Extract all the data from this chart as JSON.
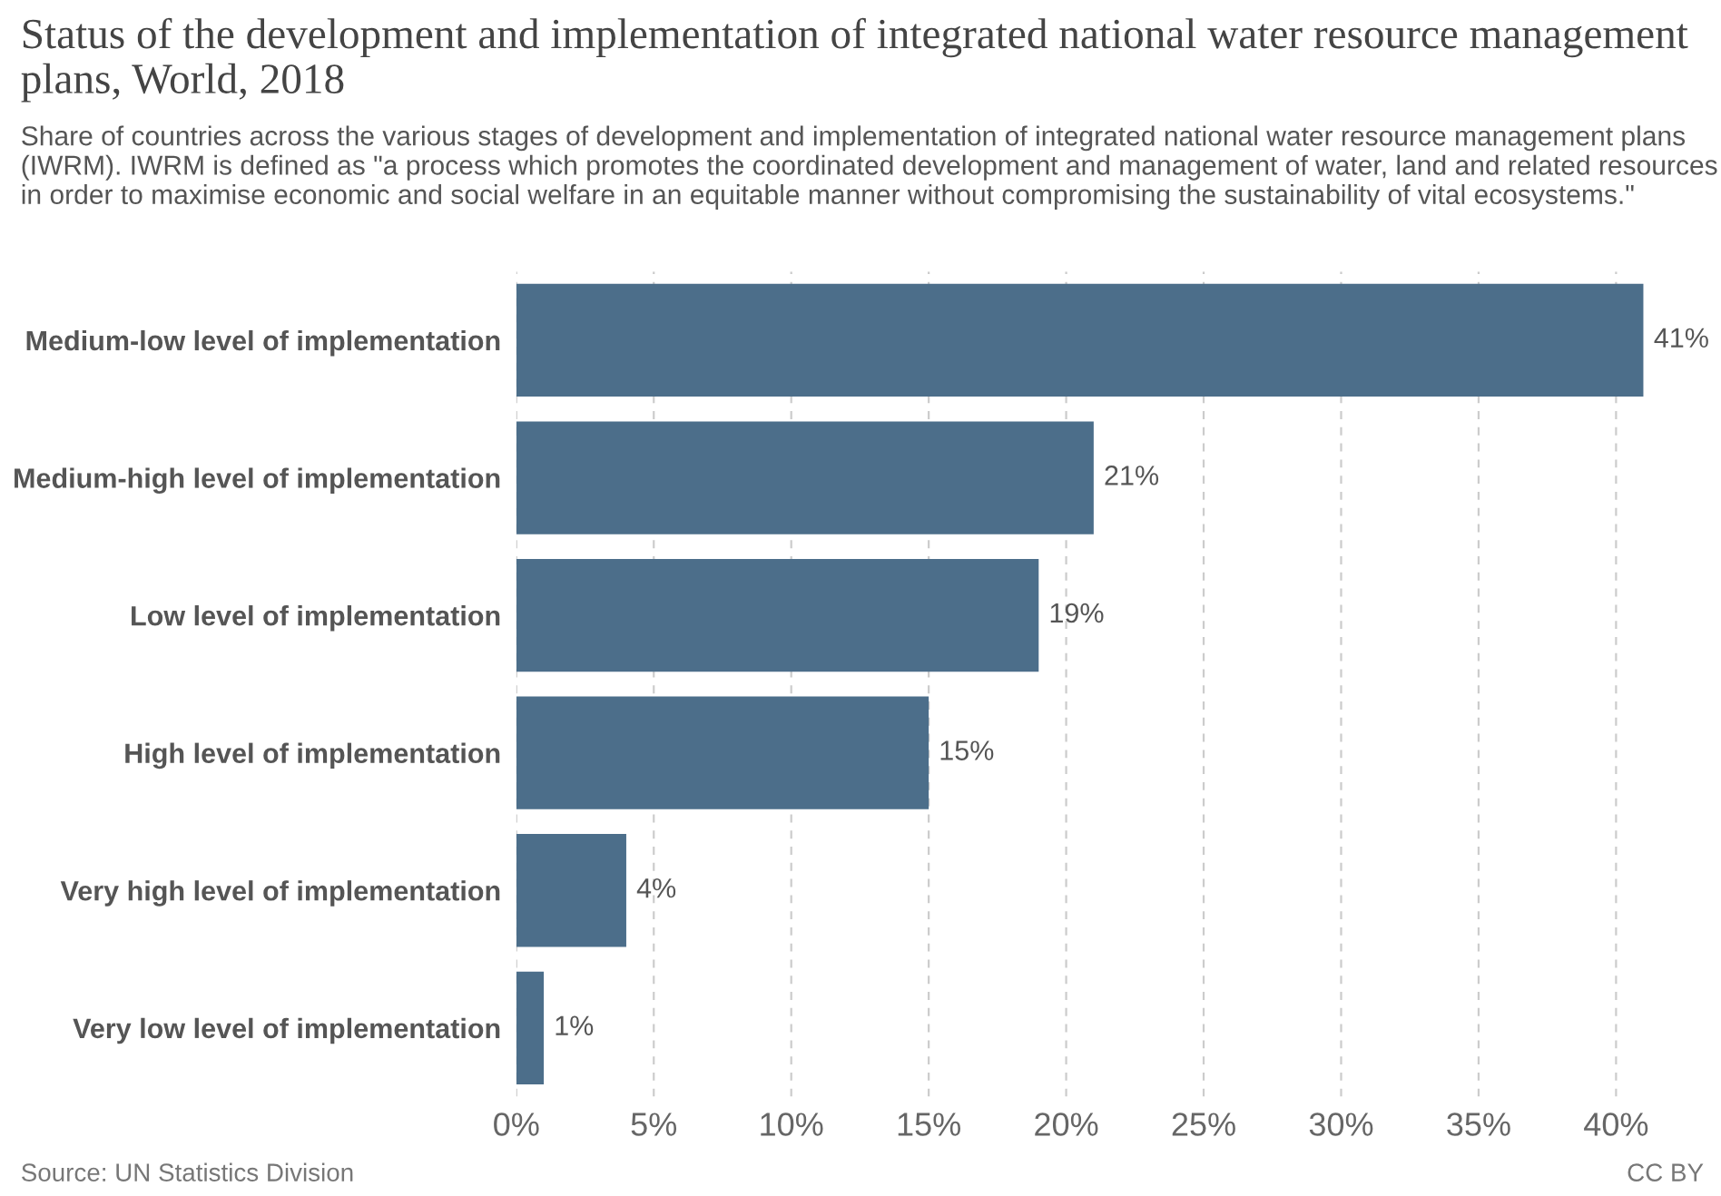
{
  "chart_data": {
    "type": "bar",
    "orientation": "horizontal",
    "title": "Status of the development and implementation of integrated national water resource management plans, World, 2018",
    "subtitle": "Share of countries across the various stages of development and implementation of integrated national water resource management plans (IWRM). IWRM is defined as \"a process which promotes the coordinated development and management of water, land and related resources in order to maximise economic and social welfare in an equitable manner without compromising the sustainability of vital ecosystems.\"",
    "categories": [
      "Medium-low level of implementation",
      "Medium-high level of implementation",
      "Low level of implementation",
      "High level of implementation",
      "Very high level of implementation",
      "Very low level of implementation"
    ],
    "values": [
      41,
      21,
      19,
      15,
      4,
      1
    ],
    "value_labels": [
      "41%",
      "21%",
      "19%",
      "15%",
      "4%",
      "1%"
    ],
    "color": "#4c6e8a",
    "xlim": [
      0,
      41
    ],
    "xticks": [
      {
        "value": 0,
        "label": "0%"
      },
      {
        "value": 5,
        "label": "5%"
      },
      {
        "value": 10,
        "label": "10%"
      },
      {
        "value": 15,
        "label": "15%"
      },
      {
        "value": 20,
        "label": "20%"
      },
      {
        "value": 25,
        "label": "25%"
      },
      {
        "value": 30,
        "label": "30%"
      },
      {
        "value": 35,
        "label": "35%"
      },
      {
        "value": 40,
        "label": "40%"
      }
    ],
    "grid": "x",
    "annotations": [
      "Source: UN Statistics Division",
      "CC BY"
    ]
  }
}
